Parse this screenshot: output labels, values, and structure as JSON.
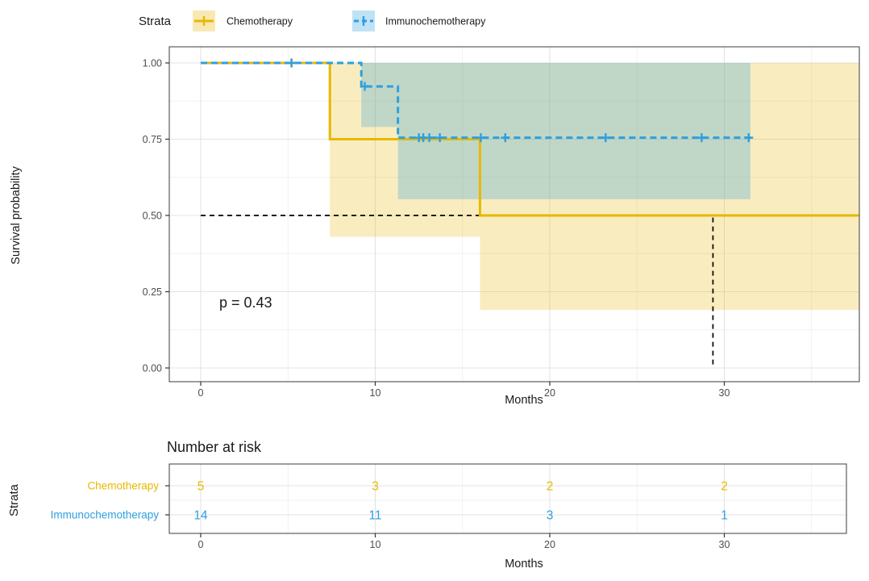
{
  "colors": {
    "chemo": "#E7B800",
    "immuno": "#2E9FDF",
    "chemo_key_fill": "#F8E9B4",
    "immuno_key_fill": "#C0E2F5",
    "chemo_band": "#E7B800",
    "immuno_band": "#2E9FDF",
    "median_line": "#000000",
    "grid_major": "#E3E3E3",
    "grid_minor": "#F1F1F1",
    "panel_border": "#4d4d4d",
    "axis_text": "#4d4d4d",
    "tick": "#333333"
  },
  "legend": {
    "title": "Strata",
    "items": [
      {
        "label": "Chemotherapy",
        "color_key": "chemo",
        "fill_key": "chemo_key_fill",
        "dashed": false
      },
      {
        "label": "Immunochemotherapy",
        "color_key": "immuno",
        "fill_key": "immuno_key_fill",
        "dashed": true
      }
    ]
  },
  "main_plot": {
    "ylabel": "Survival probability",
    "xlabel": "Months",
    "pvalue": "p = 0.43"
  },
  "risk_table": {
    "title": "Number at risk",
    "axis_title": "Strata",
    "xlabel": "Months",
    "x_ticks": [
      0,
      10,
      20,
      30
    ],
    "rows": [
      {
        "label": "Chemotherapy",
        "color_key": "chemo",
        "values": [
          5,
          3,
          2,
          2
        ]
      },
      {
        "label": "Immunochemotherapy",
        "color_key": "immuno",
        "values": [
          14,
          11,
          3,
          1
        ]
      }
    ]
  },
  "chart_data": {
    "type": "line",
    "subtype": "kaplan-meier-step",
    "title": "",
    "xlabel": "Months",
    "ylabel": "Survival probability",
    "xlim": [
      -1.8,
      37.74
    ],
    "ylim": [
      -0.045,
      1.053
    ],
    "x_ticks": [
      0,
      10,
      20,
      30
    ],
    "x_minor_ticks": [
      5,
      15,
      25,
      35
    ],
    "y_ticks": [
      0.0,
      0.25,
      0.5,
      0.75,
      1.0
    ],
    "y_minor_ticks": [
      0.125,
      0.375,
      0.625,
      0.875
    ],
    "grid": true,
    "legend_position": "top",
    "pvalue_annotation": {
      "text": "p = 0.43",
      "x": 1.1,
      "y": 0.2
    },
    "series": [
      {
        "name": "Chemotherapy",
        "color_key": "chemo",
        "style": "solid",
        "steps": [
          [
            0,
            1.0
          ],
          [
            7.4,
            1.0
          ],
          [
            7.4,
            0.75
          ],
          [
            16,
            0.75
          ],
          [
            16,
            0.5
          ],
          [
            37.74,
            0.5
          ]
        ],
        "censors": [
          [
            5.2,
            1.0
          ]
        ],
        "ci": [
          {
            "x0": 7.4,
            "x1": 16,
            "lower": 0.43,
            "upper": 1.0
          },
          {
            "x0": 16,
            "x1": 37.74,
            "lower": 0.19,
            "upper": 1.0
          }
        ]
      },
      {
        "name": "Immunochemotherapy",
        "color_key": "immuno",
        "style": "dashed",
        "steps": [
          [
            0,
            1.0
          ],
          [
            9.2,
            1.0
          ],
          [
            9.2,
            0.923
          ],
          [
            11.3,
            0.923
          ],
          [
            11.3,
            0.755
          ],
          [
            31.6,
            0.755
          ]
        ],
        "censors": [
          [
            5.2,
            1.0
          ],
          [
            9.4,
            0.923
          ],
          [
            12.5,
            0.755
          ],
          [
            12.75,
            0.755
          ],
          [
            13.1,
            0.755
          ],
          [
            13.7,
            0.755
          ],
          [
            16.05,
            0.755
          ],
          [
            17.45,
            0.755
          ],
          [
            23.2,
            0.755
          ],
          [
            28.7,
            0.755
          ],
          [
            31.4,
            0.755
          ]
        ],
        "ci": [
          {
            "x0": 9.2,
            "x1": 11.3,
            "lower": 0.79,
            "upper": 1.0
          },
          {
            "x0": 11.3,
            "x1": 31.5,
            "lower": 0.553,
            "upper": 1.0
          }
        ]
      }
    ],
    "median_line": {
      "y": 0.5,
      "x_start": 0,
      "x_corner": 29.35,
      "drop_to": 0
    }
  }
}
